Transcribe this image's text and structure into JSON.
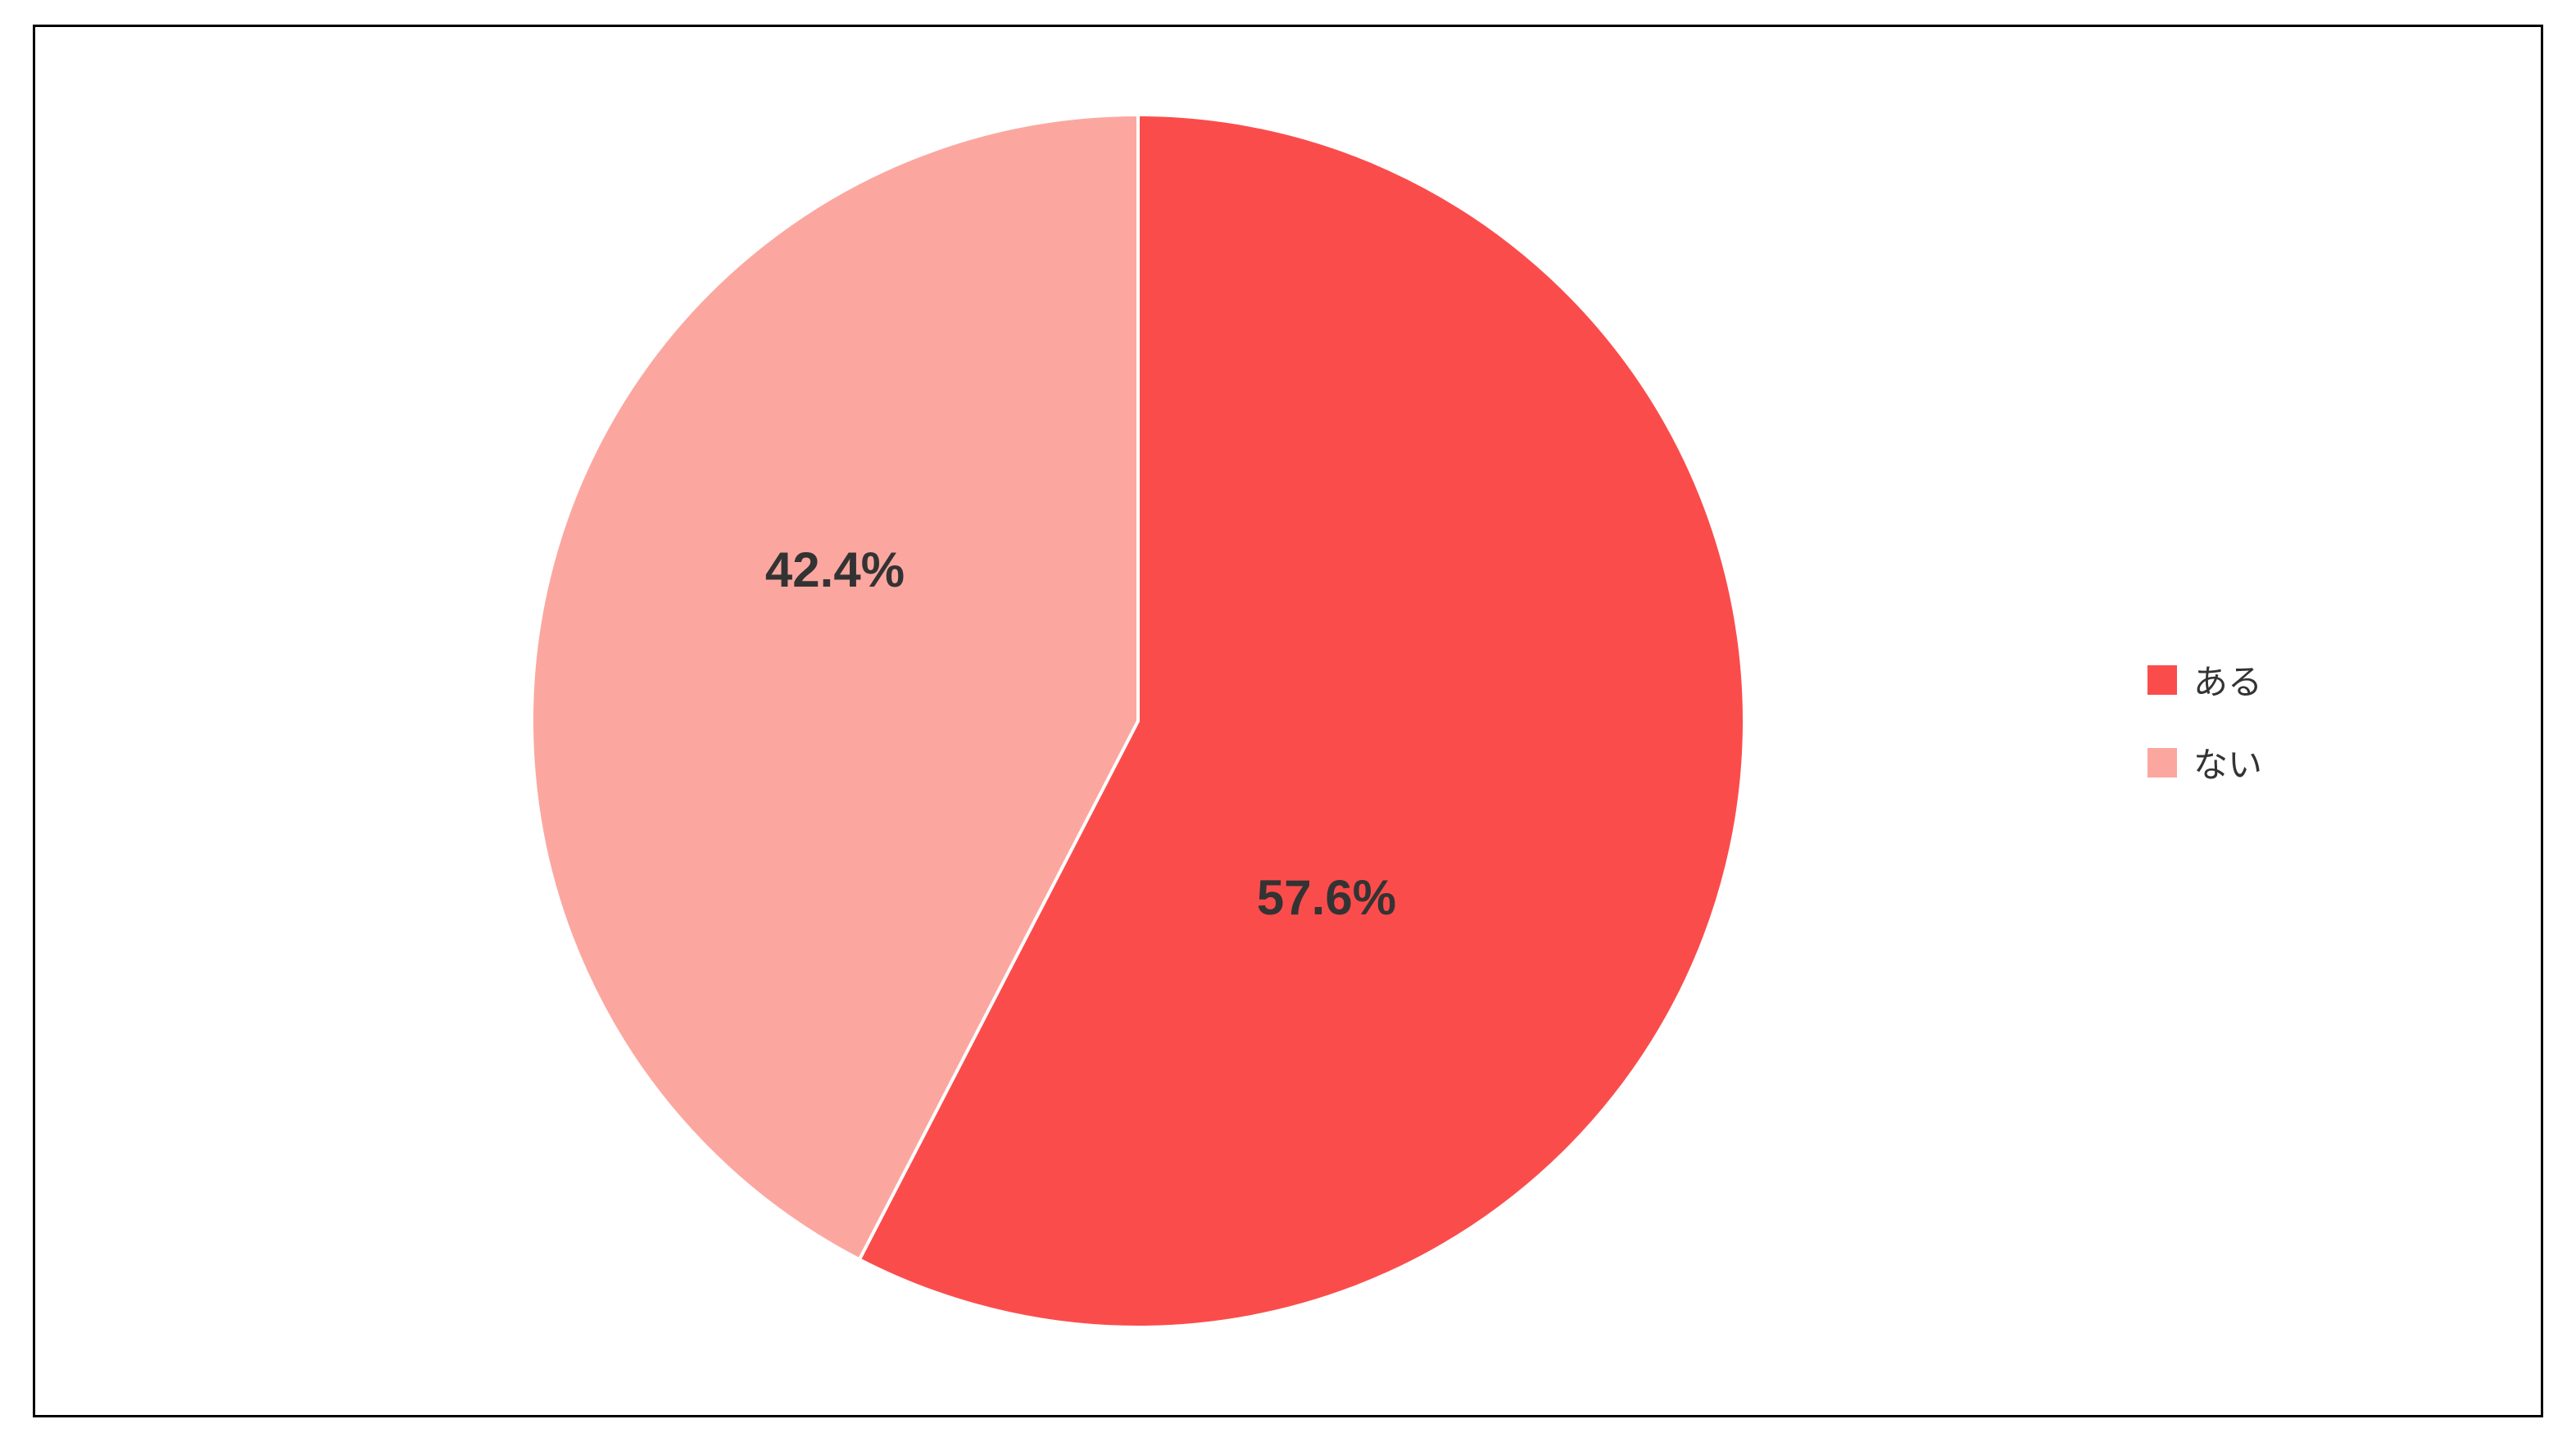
{
  "chart": {
    "type": "pie",
    "background_color": "#ffffff",
    "border_color": "#000000",
    "border_width": 3,
    "radius": 740,
    "stroke_color": "#ffffff",
    "stroke_width": 4,
    "label_fontsize": 60,
    "label_fontweight": 700,
    "label_color": "#333333",
    "legend_fontsize": 42,
    "legend_color": "#333333",
    "legend_swatch_size": 36,
    "slices": [
      {
        "label": "ある",
        "value": 57.6,
        "display": "57.6%",
        "color": "#fb4c4c"
      },
      {
        "label": "ない",
        "value": 42.4,
        "display": "42.4%",
        "color": "#fba7a0"
      }
    ]
  }
}
